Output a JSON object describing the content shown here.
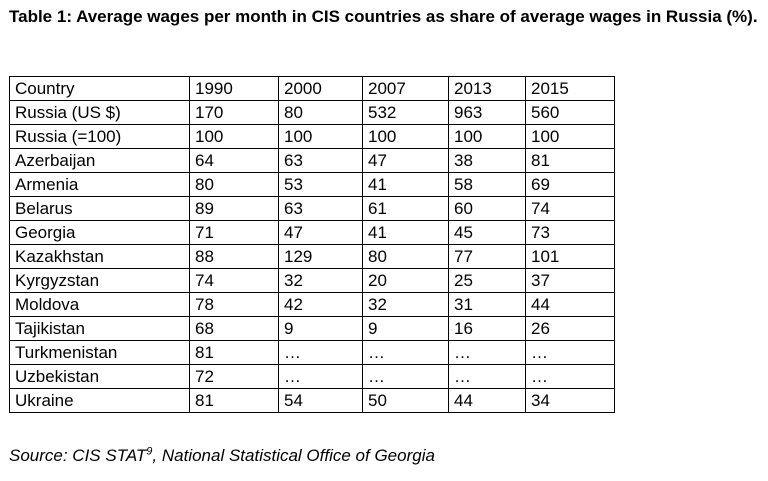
{
  "title": "Table 1: Average wages per month in CIS countries as share of average wages in Russia (%).",
  "table": {
    "headers": [
      "Country",
      "1990",
      "2000",
      "2007",
      "2013",
      "2015"
    ],
    "rows": [
      [
        "Russia (US $)",
        "170",
        "80",
        "532",
        "963",
        "560"
      ],
      [
        "Russia (=100)",
        "100",
        "100",
        "100",
        "100",
        "100"
      ],
      [
        "Azerbaijan",
        "64",
        "63",
        "47",
        "38",
        "81"
      ],
      [
        "Armenia",
        "80",
        "53",
        "41",
        "58",
        "69"
      ],
      [
        "Belarus",
        "89",
        "63",
        "61",
        "60",
        "74"
      ],
      [
        "Georgia",
        "71",
        "47",
        "41",
        "45",
        "73"
      ],
      [
        "Kazakhstan",
        "88",
        "129",
        "80",
        "77",
        "101"
      ],
      [
        "Kyrgyzstan",
        "74",
        "32",
        "20",
        "25",
        "37"
      ],
      [
        "Moldova",
        "78",
        "42",
        "32",
        "31",
        "44"
      ],
      [
        "Tajikistan",
        "68",
        "9",
        "9",
        "16",
        "26"
      ],
      [
        "Turkmenistan",
        "81",
        "…",
        "…",
        "…",
        "…"
      ],
      [
        "Uzbekistan",
        "72",
        "…",
        "…",
        "…",
        "…"
      ],
      [
        "Ukraine",
        "81",
        "54",
        "50",
        "44",
        "34"
      ]
    ]
  },
  "source": {
    "prefix": "Source: CIS STAT",
    "footnote": "9",
    "suffix": ", National Statistical Office of Georgia"
  }
}
